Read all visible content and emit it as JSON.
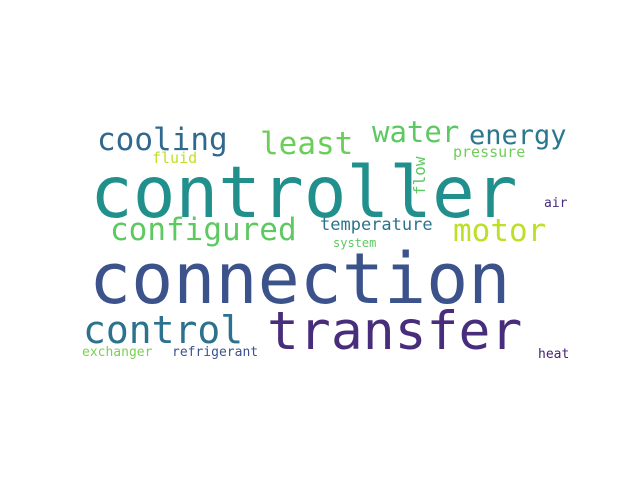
{
  "words": [
    {
      "text": "controller",
      "weight": 1.0,
      "color": "#21908d"
    },
    {
      "text": "connection",
      "weight": 0.98,
      "color": "#3b528b"
    },
    {
      "text": "transfer",
      "weight": 0.9,
      "color": "#472d7b"
    },
    {
      "text": "control",
      "weight": 0.7,
      "color": "#2c728e"
    },
    {
      "text": "configured",
      "weight": 0.5,
      "color": "#5ec962"
    },
    {
      "text": "cooling",
      "weight": 0.45,
      "color": "#31688e"
    },
    {
      "text": "least",
      "weight": 0.45,
      "color": "#6ccd5a"
    },
    {
      "text": "water",
      "weight": 0.45,
      "color": "#5ec962"
    },
    {
      "text": "energy",
      "weight": 0.42,
      "color": "#2a788e"
    },
    {
      "text": "motor",
      "weight": 0.45,
      "color": "#bddf26"
    },
    {
      "text": "temperature",
      "weight": 0.25,
      "color": "#2c728e"
    },
    {
      "text": "flow",
      "weight": 0.2,
      "color": "#5ec962"
    },
    {
      "text": "pressure",
      "weight": 0.2,
      "color": "#6ece58"
    },
    {
      "text": "fluid",
      "weight": 0.18,
      "color": "#c2df23"
    },
    {
      "text": "air",
      "weight": 0.15,
      "color": "#472d7b"
    },
    {
      "text": "system",
      "weight": 0.15,
      "color": "#5ec962"
    },
    {
      "text": "exchanger",
      "weight": 0.17,
      "color": "#7ad151"
    },
    {
      "text": "refrigerant",
      "weight": 0.17,
      "color": "#3b528b"
    },
    {
      "text": "heat",
      "weight": 0.15,
      "color": "#482173"
    }
  ]
}
